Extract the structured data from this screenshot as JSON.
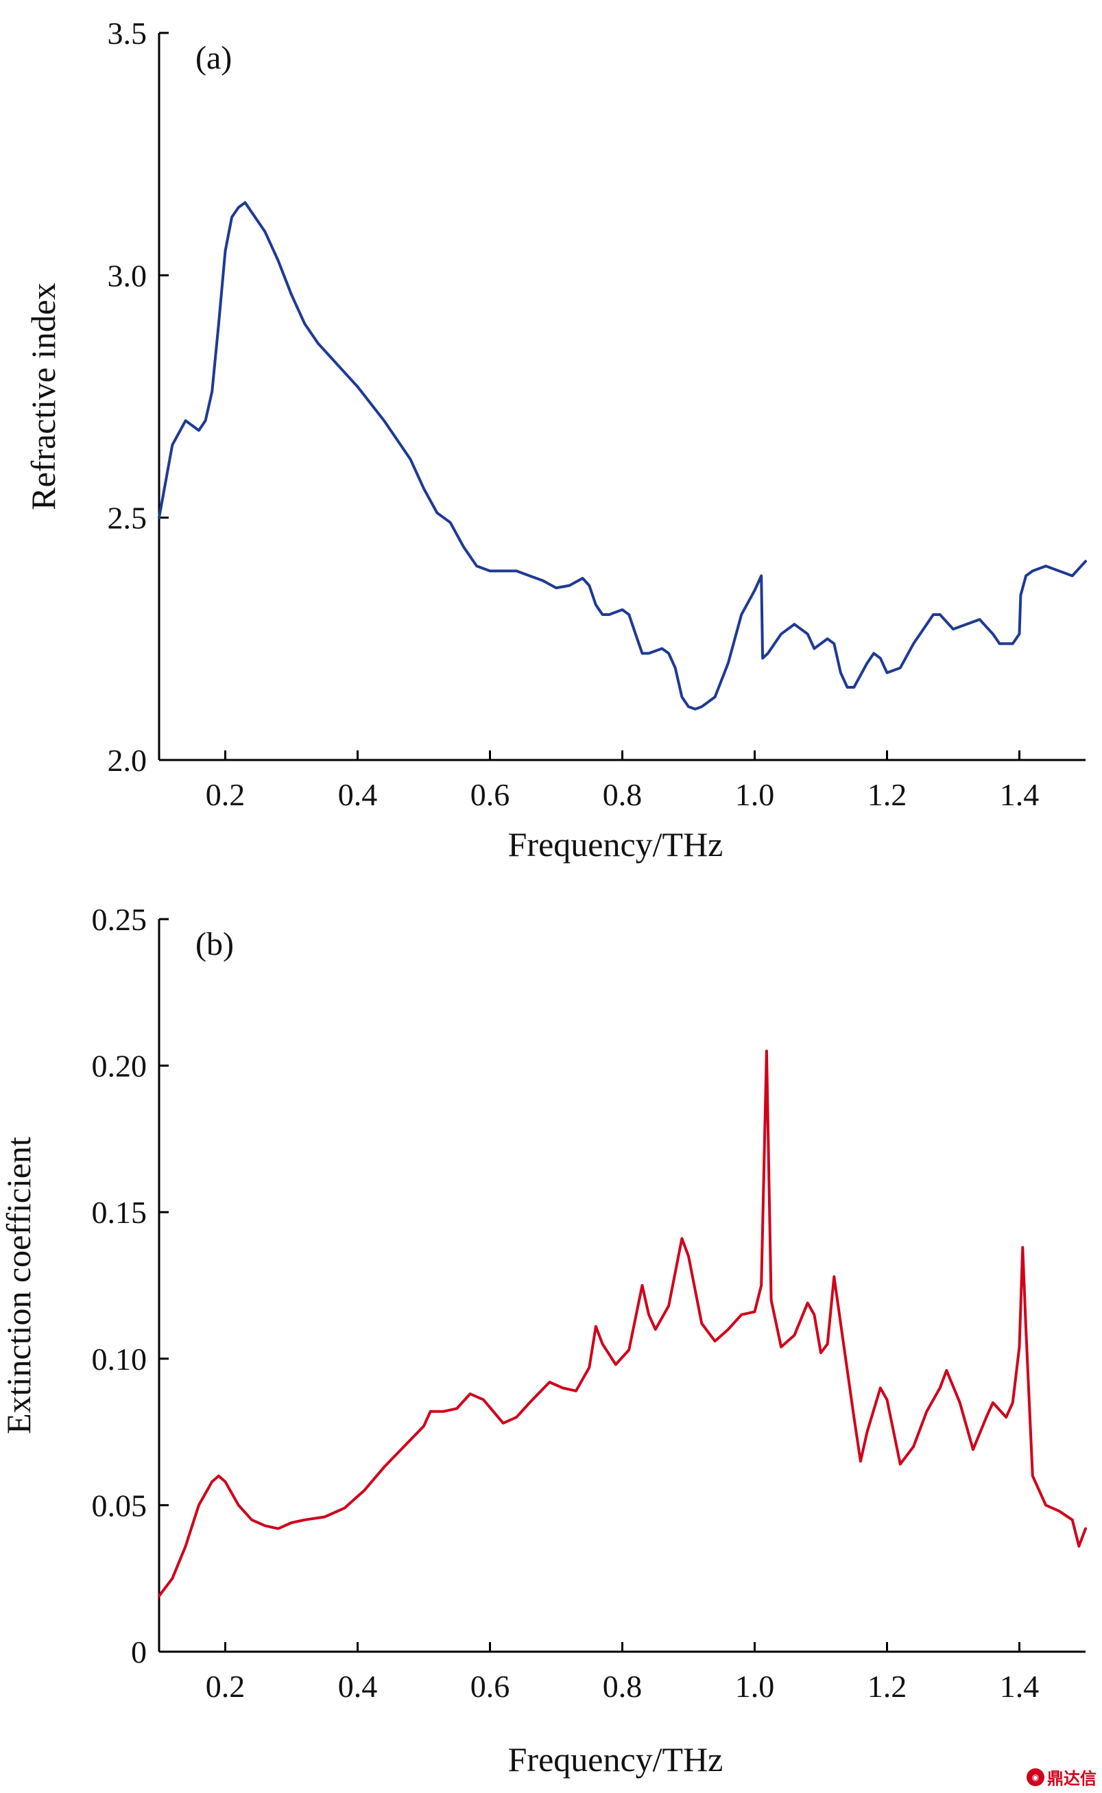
{
  "chart_data": [
    {
      "type": "line",
      "panel_label": "(a)",
      "xlabel": "Frequency/THz",
      "ylabel": "Refractive index",
      "xlim": [
        0.1,
        1.5
      ],
      "ylim": [
        2.0,
        3.5
      ],
      "xticks": [
        0.2,
        0.4,
        0.6,
        0.8,
        1.0,
        1.2,
        1.4
      ],
      "xtick_labels": [
        "0.2",
        "0.4",
        "0.6",
        "0.8",
        "1.0",
        "1.2",
        "1.4"
      ],
      "yticks": [
        2.0,
        2.5,
        3.0,
        3.5
      ],
      "ytick_labels": [
        "2.0",
        "2.5",
        "3.0",
        "3.5"
      ],
      "color": "#1f3a93",
      "grid": false,
      "series": [
        {
          "x": [
            0.1,
            0.12,
            0.14,
            0.15,
            0.16,
            0.17,
            0.18,
            0.19,
            0.2,
            0.21,
            0.22,
            0.23,
            0.24,
            0.26,
            0.28,
            0.3,
            0.32,
            0.34,
            0.36,
            0.4,
            0.44,
            0.48,
            0.5,
            0.52,
            0.54,
            0.56,
            0.58,
            0.6,
            0.62,
            0.64,
            0.66,
            0.68,
            0.7,
            0.72,
            0.74,
            0.75,
            0.76,
            0.77,
            0.78,
            0.8,
            0.81,
            0.82,
            0.83,
            0.84,
            0.86,
            0.87,
            0.88,
            0.89,
            0.9,
            0.91,
            0.92,
            0.94,
            0.96,
            0.98,
            1.0,
            1.01,
            1.012,
            1.02,
            1.04,
            1.06,
            1.08,
            1.09,
            1.1,
            1.11,
            1.12,
            1.13,
            1.14,
            1.15,
            1.17,
            1.18,
            1.19,
            1.2,
            1.22,
            1.24,
            1.26,
            1.27,
            1.28,
            1.3,
            1.32,
            1.34,
            1.36,
            1.37,
            1.38,
            1.39,
            1.4,
            1.402,
            1.41,
            1.42,
            1.44,
            1.46,
            1.48,
            1.5
          ],
          "y": [
            2.5,
            2.65,
            2.7,
            2.69,
            2.68,
            2.7,
            2.76,
            2.9,
            3.05,
            3.12,
            3.14,
            3.15,
            3.13,
            3.09,
            3.03,
            2.96,
            2.9,
            2.86,
            2.83,
            2.77,
            2.7,
            2.62,
            2.56,
            2.51,
            2.49,
            2.44,
            2.4,
            2.39,
            2.39,
            2.39,
            2.38,
            2.37,
            2.355,
            2.36,
            2.375,
            2.36,
            2.32,
            2.3,
            2.3,
            2.31,
            2.3,
            2.26,
            2.22,
            2.22,
            2.23,
            2.22,
            2.19,
            2.13,
            2.11,
            2.105,
            2.11,
            2.13,
            2.2,
            2.3,
            2.35,
            2.38,
            2.21,
            2.22,
            2.26,
            2.28,
            2.26,
            2.23,
            2.24,
            2.25,
            2.24,
            2.18,
            2.15,
            2.15,
            2.2,
            2.22,
            2.21,
            2.18,
            2.19,
            2.24,
            2.28,
            2.3,
            2.3,
            2.27,
            2.28,
            2.29,
            2.26,
            2.24,
            2.24,
            2.24,
            2.26,
            2.34,
            2.38,
            2.39,
            2.4,
            2.39,
            2.38,
            2.41
          ]
        }
      ]
    },
    {
      "type": "line",
      "panel_label": "(b)",
      "xlabel": "Frequency/THz",
      "ylabel": "Extinction coefficient",
      "xlim": [
        0.1,
        1.5
      ],
      "ylim": [
        0,
        0.25
      ],
      "xticks": [
        0.2,
        0.4,
        0.6,
        0.8,
        1.0,
        1.2,
        1.4
      ],
      "xtick_labels": [
        "0.2",
        "0.4",
        "0.6",
        "0.8",
        "1.0",
        "1.2",
        "1.4"
      ],
      "yticks": [
        0,
        0.05,
        0.1,
        0.15,
        0.2,
        0.25
      ],
      "ytick_labels": [
        "0",
        "0.05",
        "0.10",
        "0.15",
        "0.20",
        "0.25"
      ],
      "color": "#d0021b",
      "grid": false,
      "series": [
        {
          "x": [
            0.1,
            0.12,
            0.14,
            0.16,
            0.18,
            0.19,
            0.2,
            0.22,
            0.24,
            0.26,
            0.28,
            0.3,
            0.32,
            0.35,
            0.38,
            0.41,
            0.44,
            0.47,
            0.5,
            0.51,
            0.53,
            0.55,
            0.57,
            0.59,
            0.62,
            0.64,
            0.66,
            0.69,
            0.71,
            0.73,
            0.75,
            0.76,
            0.77,
            0.79,
            0.81,
            0.83,
            0.84,
            0.85,
            0.87,
            0.89,
            0.9,
            0.92,
            0.94,
            0.96,
            0.98,
            1.0,
            1.01,
            1.018,
            1.025,
            1.04,
            1.06,
            1.08,
            1.09,
            1.1,
            1.11,
            1.12,
            1.13,
            1.15,
            1.16,
            1.17,
            1.19,
            1.2,
            1.22,
            1.24,
            1.26,
            1.28,
            1.29,
            1.31,
            1.33,
            1.35,
            1.36,
            1.38,
            1.39,
            1.4,
            1.405,
            1.41,
            1.42,
            1.44,
            1.46,
            1.48,
            1.49,
            1.5
          ],
          "y": [
            0.019,
            0.025,
            0.036,
            0.05,
            0.058,
            0.06,
            0.058,
            0.05,
            0.045,
            0.043,
            0.042,
            0.044,
            0.045,
            0.046,
            0.049,
            0.055,
            0.063,
            0.07,
            0.077,
            0.082,
            0.082,
            0.083,
            0.088,
            0.086,
            0.078,
            0.08,
            0.085,
            0.092,
            0.09,
            0.089,
            0.097,
            0.111,
            0.105,
            0.098,
            0.103,
            0.125,
            0.115,
            0.11,
            0.118,
            0.141,
            0.135,
            0.112,
            0.106,
            0.11,
            0.115,
            0.116,
            0.125,
            0.205,
            0.12,
            0.104,
            0.108,
            0.119,
            0.115,
            0.102,
            0.105,
            0.128,
            0.112,
            0.08,
            0.065,
            0.075,
            0.09,
            0.086,
            0.064,
            0.07,
            0.082,
            0.09,
            0.096,
            0.085,
            0.069,
            0.08,
            0.085,
            0.08,
            0.085,
            0.104,
            0.138,
            0.11,
            0.06,
            0.05,
            0.048,
            0.045,
            0.036,
            0.042
          ]
        }
      ]
    }
  ],
  "watermark": {
    "seal": "ᴰᴰˣ",
    "text": "鼎达信"
  }
}
